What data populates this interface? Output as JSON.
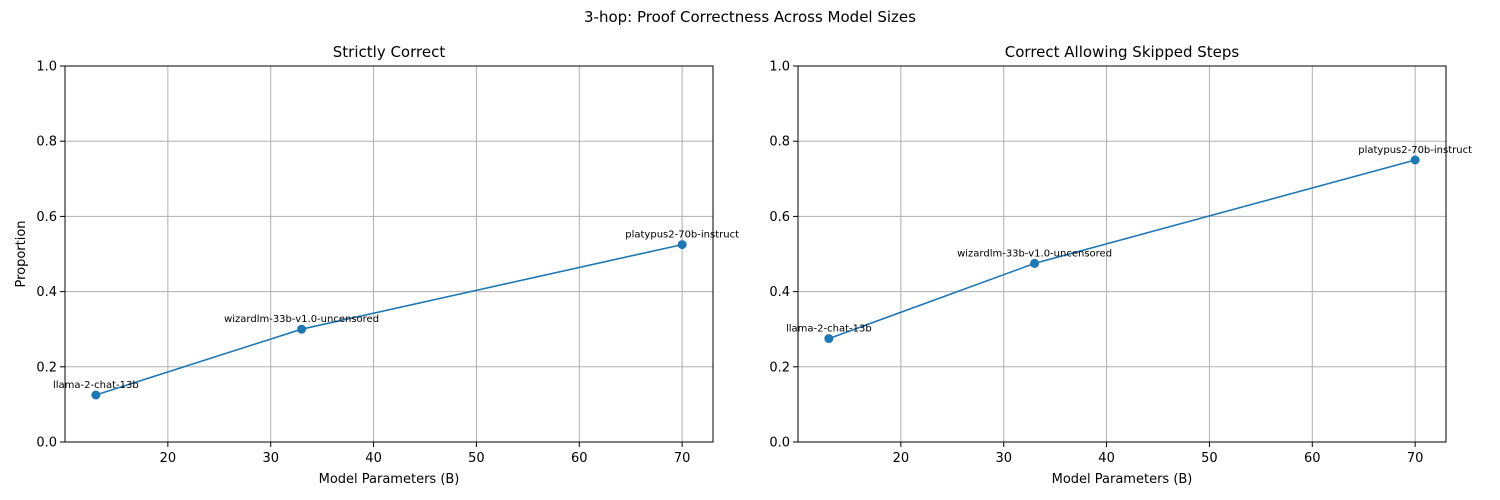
{
  "figure_title": "3-hop: Proof Correctness Across Model Sizes",
  "chart_data": [
    {
      "type": "line",
      "title": "Strictly Correct",
      "xlabel": "Model Parameters (B)",
      "ylabel": "Proportion",
      "xlim": [
        10,
        73
      ],
      "ylim": [
        0,
        1
      ],
      "xticks": [
        20,
        30,
        40,
        50,
        60,
        70
      ],
      "yticks": [
        0.0,
        0.2,
        0.4,
        0.6,
        0.8,
        1.0
      ],
      "ytick_labels": [
        "0.0",
        "0.2",
        "0.4",
        "0.6",
        "0.8",
        "1.0"
      ],
      "grid": true,
      "color": "#1f77b4",
      "x": [
        13,
        33,
        70
      ],
      "y": [
        0.125,
        0.3,
        0.525
      ],
      "point_labels": [
        "llama-2-chat-13b",
        "wizardlm-33b-v1.0-uncensored",
        "platypus2-70b-instruct"
      ]
    },
    {
      "type": "line",
      "title": "Correct Allowing Skipped Steps",
      "xlabel": "Model Parameters (B)",
      "ylabel": "",
      "xlim": [
        10,
        73
      ],
      "ylim": [
        0,
        1
      ],
      "xticks": [
        20,
        30,
        40,
        50,
        60,
        70
      ],
      "yticks": [
        0.0,
        0.2,
        0.4,
        0.6,
        0.8,
        1.0
      ],
      "ytick_labels": [
        "0.0",
        "0.2",
        "0.4",
        "0.6",
        "0.8",
        "1.0"
      ],
      "grid": true,
      "color": "#1f77b4",
      "x": [
        13,
        33,
        70
      ],
      "y": [
        0.275,
        0.475,
        0.75
      ],
      "point_labels": [
        "llama-2-chat-13b",
        "wizardlm-33b-v1.0-uncensored",
        "platypus2-70b-instruct"
      ]
    }
  ]
}
